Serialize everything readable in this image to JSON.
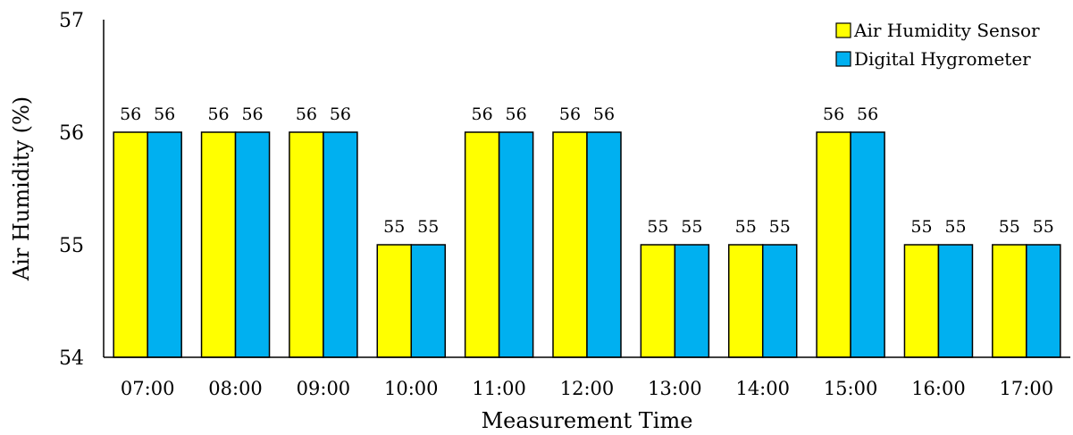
{
  "chart_data": {
    "type": "bar",
    "categories": [
      "07:00",
      "08:00",
      "09:00",
      "10:00",
      "11:00",
      "12:00",
      "13:00",
      "14:00",
      "15:00",
      "16:00",
      "17:00"
    ],
    "series": [
      {
        "name": "Air Humidity Sensor",
        "color": "#FFFF00",
        "values": [
          56,
          56,
          56,
          55,
          56,
          56,
          55,
          55,
          56,
          55,
          55
        ]
      },
      {
        "name": "Digital Hygrometer",
        "color": "#00B0F0",
        "values": [
          56,
          56,
          56,
          55,
          56,
          56,
          55,
          55,
          56,
          55,
          55
        ]
      }
    ],
    "xlabel": "Measurement Time",
    "ylabel": "Air Humidity (%)",
    "ylim": [
      54,
      57
    ],
    "yticks": [
      54,
      55,
      56,
      57
    ],
    "grid": false,
    "legend_position": "top-right"
  }
}
